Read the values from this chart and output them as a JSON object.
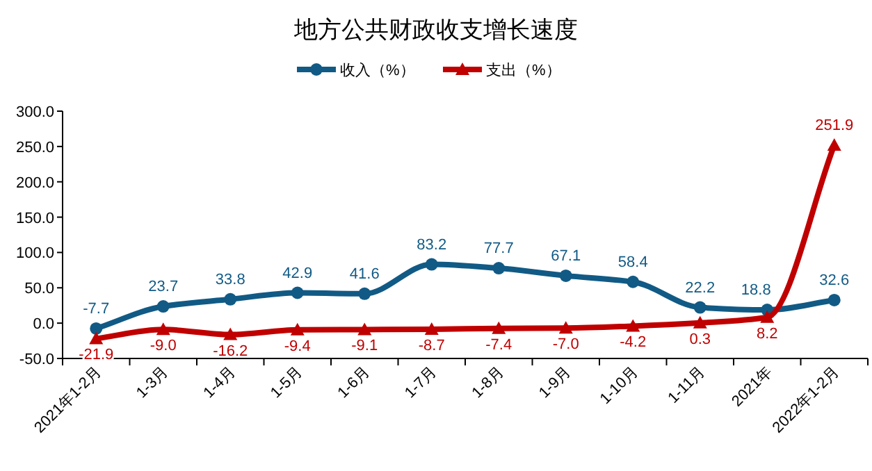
{
  "chart_data": {
    "type": "line",
    "title": "地方公共财政收支增长速度",
    "categories": [
      "2021年1-2月",
      "1-3月",
      "1-4月",
      "1-5月",
      "1-6月",
      "1-7月",
      "1-8月",
      "1-9月",
      "1-10月",
      "1-11月",
      "2021年",
      "2022年1-2月"
    ],
    "series": [
      {
        "name": "收入（%）",
        "color": "#115a85",
        "marker": "circle",
        "values": [
          -7.7,
          23.7,
          33.8,
          42.9,
          41.6,
          83.2,
          77.7,
          67.1,
          58.4,
          22.2,
          18.8,
          32.6
        ],
        "value_labels": [
          "-7.7",
          "23.7",
          "33.8",
          "42.9",
          "41.6",
          "83.2",
          "77.7",
          "67.1",
          "58.4",
          "22.2",
          "18.8",
          "32.6"
        ]
      },
      {
        "name": "支出（%）",
        "color": "#c00000",
        "marker": "triangle",
        "values": [
          -21.9,
          -9.0,
          -16.2,
          -9.4,
          -9.1,
          -8.7,
          -7.4,
          -7.0,
          -4.2,
          0.3,
          8.2,
          251.9
        ],
        "value_labels": [
          "-21.9",
          "-9.0",
          "-16.2",
          "-9.4",
          "-9.1",
          "-8.7",
          "-7.4",
          "-7.0",
          "-4.2",
          "0.3",
          "8.2",
          "251.9"
        ]
      }
    ],
    "ylim": [
      -50,
      300
    ],
    "yticks": [
      {
        "value": -50,
        "label": "-50.0"
      },
      {
        "value": 0,
        "label": "0.0"
      },
      {
        "value": 50,
        "label": "50.0"
      },
      {
        "value": 100,
        "label": "100.0"
      },
      {
        "value": 150,
        "label": "150.0"
      },
      {
        "value": 200,
        "label": "200.0"
      },
      {
        "value": 250,
        "label": "250.0"
      },
      {
        "value": 300,
        "label": "300.0"
      }
    ],
    "legend": "top",
    "grid": false,
    "line_style": "solid"
  }
}
